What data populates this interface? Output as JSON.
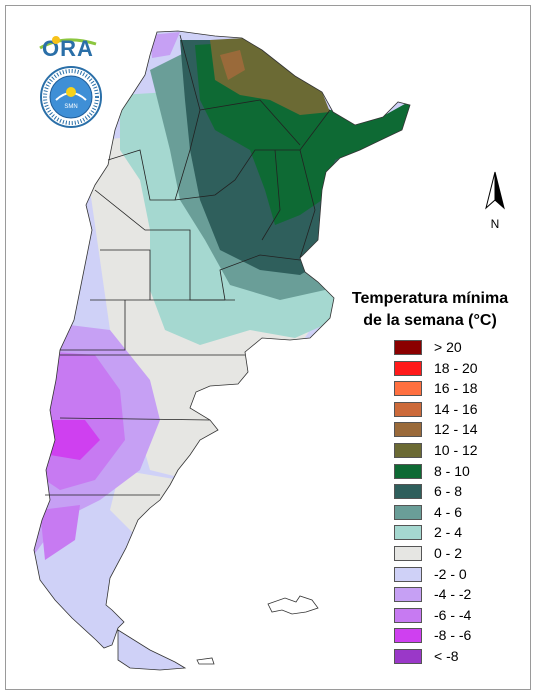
{
  "logo": {
    "text": "ORA"
  },
  "seal": {
    "text": "SERVICIO METEOROLOGICO NACIONAL · ARGENTINA · SMN"
  },
  "north_arrow": {
    "label": "N"
  },
  "legend": {
    "title_line1": "Temperatura mínima",
    "title_line2": "de la semana (°C)",
    "items": [
      {
        "label": "> 20",
        "color": "#8b0000"
      },
      {
        "label": "18 - 20",
        "color": "#ff1a1a"
      },
      {
        "label": "16 - 18",
        "color": "#ff7040"
      },
      {
        "label": "14 - 16",
        "color": "#cc6a3a"
      },
      {
        "label": "12 - 14",
        "color": "#9a6a3a"
      },
      {
        "label": "10 - 12",
        "color": "#6b6a34"
      },
      {
        "label": "8 - 10",
        "color": "#0e6a34"
      },
      {
        "label": "6 - 8",
        "color": "#2f5f5c"
      },
      {
        "label": "4 - 6",
        "color": "#6a9e98"
      },
      {
        "label": "2 - 4",
        "color": "#a5d8d0"
      },
      {
        "label": "0 - 2",
        "color": "#e6e6e3"
      },
      {
        "label": "-2 - 0",
        "color": "#cfd1f7"
      },
      {
        "label": "-4 - -2",
        "color": "#c6a0f4"
      },
      {
        "label": "-6 - -4",
        "color": "#c77af2"
      },
      {
        "label": "-8 - -6",
        "color": "#cf40f0"
      },
      {
        "label": "< -8",
        "color": "#9a38c8"
      }
    ]
  }
}
